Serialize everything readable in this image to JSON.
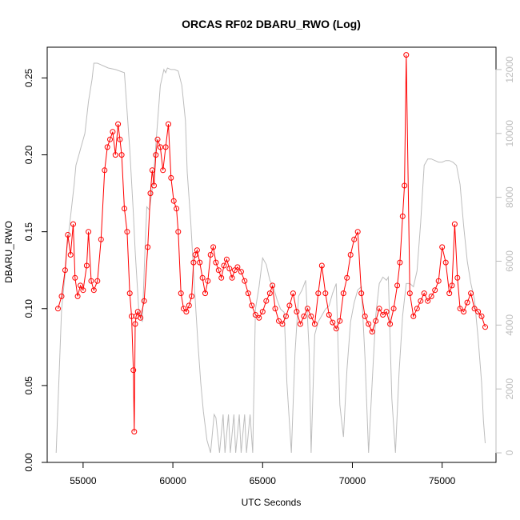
{
  "chart_data": {
    "type": "line",
    "title": "ORCAS RF02 DBARU_RWO (Log)",
    "xlabel": "UTC Seconds",
    "ylabel": "DBARU_RWO",
    "xlim": [
      53000,
      78000
    ],
    "ylim": [
      0,
      0.27
    ],
    "y2lim": [
      -300,
      12700
    ],
    "xticks": [
      55000,
      60000,
      65000,
      70000,
      75000
    ],
    "xtick_labels": [
      "55000",
      "60000",
      "65000",
      "70000",
      "75000"
    ],
    "yticks": [
      0.0,
      0.05,
      0.1,
      0.15,
      0.2,
      0.25
    ],
    "ytick_labels": [
      "0.00",
      "0.05",
      "0.10",
      "0.15",
      "0.20",
      "0.25"
    ],
    "y2ticks": [
      0,
      2000,
      4000,
      6000,
      8000,
      10000,
      12000
    ],
    "y2tick_labels": [
      "0",
      "2000",
      "4000",
      "6000",
      "8000",
      "10000",
      "12000"
    ],
    "colors": {
      "series": "#ff0000",
      "secondary": "#bdbdbd",
      "axis": "#000000"
    },
    "grid": false,
    "series": [
      {
        "axis": "left",
        "style": "line+points",
        "x": [
          53600,
          53800,
          54000,
          54150,
          54300,
          54450,
          54550,
          54700,
          54850,
          55000,
          55200,
          55300,
          55450,
          55600,
          55800,
          56000,
          56200,
          56350,
          56500,
          56650,
          56800,
          56950,
          57050,
          57150,
          57300,
          57450,
          57600,
          57700,
          57800,
          57850,
          57900,
          57950,
          58050,
          58200,
          58400,
          58600,
          58750,
          58850,
          58950,
          59050,
          59150,
          59300,
          59450,
          59600,
          59750,
          59900,
          60050,
          60200,
          60300,
          60450,
          60600,
          60750,
          60900,
          61050,
          61150,
          61250,
          61350,
          61500,
          61650,
          61800,
          61950,
          62100,
          62250,
          62400,
          62550,
          62700,
          62850,
          63000,
          63150,
          63300,
          63450,
          63600,
          63800,
          64000,
          64200,
          64400,
          64600,
          64800,
          65000,
          65200,
          65400,
          65550,
          65700,
          65900,
          66100,
          66300,
          66500,
          66700,
          66900,
          67100,
          67300,
          67500,
          67700,
          67900,
          68100,
          68300,
          68500,
          68700,
          68900,
          69100,
          69300,
          69500,
          69700,
          69900,
          70100,
          70300,
          70500,
          70700,
          70900,
          71100,
          71300,
          71500,
          71700,
          71900,
          72100,
          72300,
          72500,
          72650,
          72800,
          72900,
          73000,
          73200,
          73400,
          73600,
          73800,
          74000,
          74200,
          74400,
          74600,
          74800,
          75000,
          75200,
          75400,
          75550,
          75700,
          75850,
          76000,
          76200,
          76400,
          76600,
          76800,
          77000,
          77200,
          77400
        ],
        "y": [
          0.1,
          0.108,
          0.125,
          0.148,
          0.135,
          0.155,
          0.12,
          0.108,
          0.115,
          0.112,
          0.128,
          0.15,
          0.118,
          0.112,
          0.118,
          0.145,
          0.19,
          0.205,
          0.21,
          0.215,
          0.2,
          0.22,
          0.21,
          0.2,
          0.165,
          0.15,
          0.11,
          0.095,
          0.06,
          0.02,
          0.09,
          0.095,
          0.098,
          0.094,
          0.105,
          0.14,
          0.175,
          0.19,
          0.18,
          0.2,
          0.21,
          0.205,
          0.19,
          0.205,
          0.22,
          0.185,
          0.17,
          0.165,
          0.15,
          0.11,
          0.1,
          0.098,
          0.102,
          0.108,
          0.13,
          0.135,
          0.138,
          0.13,
          0.12,
          0.11,
          0.118,
          0.135,
          0.14,
          0.13,
          0.125,
          0.12,
          0.128,
          0.132,
          0.126,
          0.12,
          0.125,
          0.127,
          0.124,
          0.118,
          0.11,
          0.102,
          0.096,
          0.094,
          0.098,
          0.105,
          0.11,
          0.115,
          0.1,
          0.092,
          0.09,
          0.095,
          0.102,
          0.11,
          0.098,
          0.09,
          0.095,
          0.1,
          0.095,
          0.09,
          0.11,
          0.128,
          0.11,
          0.096,
          0.091,
          0.087,
          0.092,
          0.11,
          0.12,
          0.135,
          0.145,
          0.15,
          0.11,
          0.095,
          0.09,
          0.085,
          0.092,
          0.1,
          0.096,
          0.098,
          0.09,
          0.1,
          0.115,
          0.13,
          0.16,
          0.18,
          0.265,
          0.11,
          0.095,
          0.1,
          0.105,
          0.11,
          0.105,
          0.108,
          0.112,
          0.118,
          0.14,
          0.13,
          0.11,
          0.115,
          0.155,
          0.12,
          0.1,
          0.098,
          0.104,
          0.11,
          0.1,
          0.098,
          0.095,
          0.088
        ]
      },
      {
        "axis": "right",
        "style": "line",
        "x": [
          53500,
          53800,
          54000,
          54100,
          54300,
          54500,
          54600,
          54800,
          54900,
          55100,
          55300,
          55500,
          55600,
          55800,
          56200,
          56400,
          56800,
          57300,
          57600,
          57800,
          57900,
          58100,
          58300,
          58450,
          58550,
          58700,
          58900,
          59100,
          59300,
          59500,
          59600,
          59700,
          59900,
          60100,
          60300,
          60500,
          60700,
          60800,
          61000,
          61200,
          61400,
          61550,
          61700,
          61900,
          62100,
          62300,
          62400,
          62600,
          62800,
          62900,
          63100,
          63200,
          63400,
          63500,
          63700,
          63800,
          64000,
          64100,
          64300,
          64450,
          64600,
          64800,
          65000,
          65200,
          65400,
          65600,
          65800,
          66000,
          66200,
          66350,
          66600,
          66800,
          67000,
          67200,
          67400,
          67600,
          67700,
          67900,
          68100,
          68300,
          68500,
          68700,
          68900,
          69100,
          69300,
          69500,
          69700,
          69900,
          70100,
          70300,
          70500,
          70700,
          70900,
          71100,
          71300,
          71500,
          71700,
          71900,
          72000,
          72200,
          72400,
          72600,
          72800,
          73000,
          73200,
          73400,
          73600,
          73800,
          74000,
          74200,
          74400,
          74600,
          74800,
          75000,
          75200,
          75400,
          75600,
          75800,
          76000,
          76200,
          76400,
          76600,
          76800,
          77000,
          77200,
          77300,
          77400
        ],
        "y": [
          0,
          4500,
          5600,
          6400,
          7400,
          8400,
          9000,
          9400,
          9600,
          10000,
          11000,
          11700,
          12200,
          12200,
          12100,
          12050,
          12000,
          11900,
          9500,
          7500,
          6300,
          4500,
          4100,
          6400,
          7700,
          7600,
          8500,
          10000,
          11500,
          12000,
          11900,
          12050,
          12000,
          12000,
          11950,
          11500,
          10400,
          8800,
          7200,
          5200,
          3400,
          2200,
          1300,
          400,
          0,
          1200,
          1100,
          0,
          1200,
          0,
          1200,
          0,
          1200,
          0,
          1200,
          0,
          1200,
          0,
          1200,
          0,
          4500,
          5200,
          6100,
          5900,
          5400,
          5200,
          4800,
          4500,
          4400,
          2200,
          0,
          3100,
          4900,
          5100,
          5400,
          3100,
          0,
          3700,
          4100,
          4300,
          4500,
          4600,
          5000,
          5300,
          1500,
          500,
          2600,
          4100,
          4700,
          5100,
          5200,
          3000,
          0,
          2200,
          4300,
          5300,
          5500,
          5400,
          5500,
          1700,
          0,
          2500,
          4300,
          5300,
          5300,
          5200,
          5700,
          7200,
          9000,
          9200,
          9200,
          9150,
          9100,
          9100,
          9150,
          9150,
          9100,
          9000,
          8400,
          7100,
          6000,
          5300,
          4800,
          3600,
          2200,
          1000,
          300
        ]
      }
    ]
  }
}
